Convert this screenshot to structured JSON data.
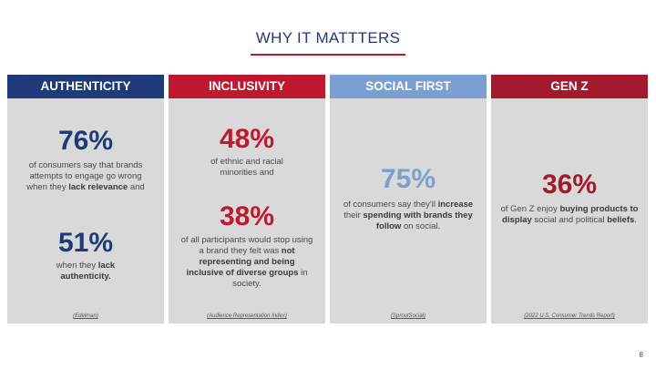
{
  "slide": {
    "title": "WHY IT MATTTERS",
    "page_number": "8"
  },
  "colors": {
    "navy": "#1f3a78",
    "red": "#c0192f",
    "light_blue": "#7a9fd0",
    "maroon": "#a3192d",
    "panel_gray": "#d9d9d9"
  },
  "columns": [
    {
      "header": "AUTHENTICITY",
      "stat1": "76%",
      "desc1_pre": "of consumers say that brands attempts to engage go wrong when they ",
      "desc1_bold": "lack relevance",
      "desc1_post": " and",
      "stat2": "51%",
      "desc2_pre": "when they ",
      "desc2_bold": "lack authenticity.",
      "source": "(Edelman)"
    },
    {
      "header": "INCLUSIVITY",
      "stat1": "48%",
      "desc1": "of ethnic and racial minorities and",
      "stat2": "38%",
      "desc2_pre": "of all participants would stop using a brand they felt was ",
      "desc2_bold": "not representing and being inclusive of diverse groups",
      "desc2_post": " in society.",
      "source": "(Audience Representation Index)"
    },
    {
      "header": "SOCIAL FIRST",
      "stat1": "75%",
      "desc1_pre": "of consumers say they'll ",
      "desc1_bold1": "increase",
      "desc1_mid": " their ",
      "desc1_bold2": "spending with brands they follow",
      "desc1_post": " on social.",
      "source": "(SproutSocial)"
    },
    {
      "header": "GEN Z",
      "stat1": "36%",
      "desc1_pre": "of Gen Z enjoy ",
      "desc1_bold1": "buying products to display",
      "desc1_mid": " social and political ",
      "desc1_bold2": "beliefs",
      "desc1_post": ".",
      "source": "(2022 U.S. Consumer Trends Report)"
    }
  ]
}
